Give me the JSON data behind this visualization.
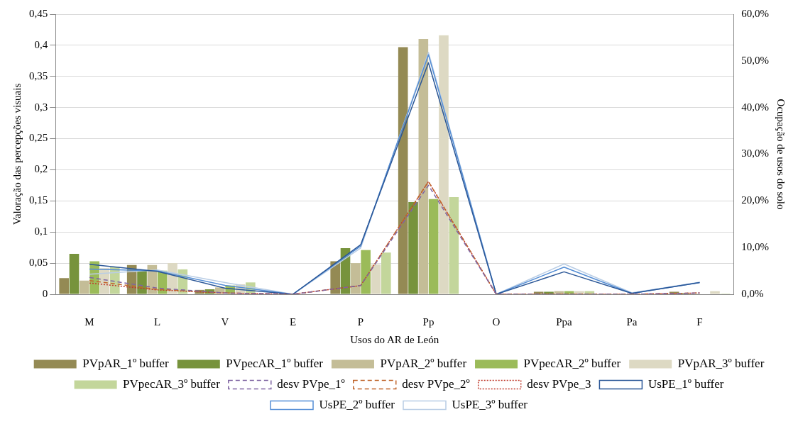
{
  "chart_data": {
    "type": "bar",
    "xlabel": "Usos do AR de León",
    "ylabel": "Valoração das percepções visuais",
    "y2label": "Ocupação de usos do solo",
    "categories": [
      "M",
      "L",
      "V",
      "E",
      "P",
      "Pp",
      "O",
      "Ppa",
      "Pa",
      "F"
    ],
    "series": [
      {
        "name": "PVpAR_1º buffer",
        "color": "#948a54",
        "values": [
          0.026,
          0.047,
          0.007,
          0,
          0.053,
          0.397,
          0,
          0.004,
          0,
          0.004
        ]
      },
      {
        "name": "PVpecAR_1º buffer",
        "color": "#77933c",
        "values": [
          0.065,
          0.038,
          0.008,
          0,
          0.074,
          0.148,
          0,
          0.004,
          0,
          0.002
        ]
      },
      {
        "name": "PVpAR_2º buffer",
        "color": "#c4bd97",
        "values": [
          0.022,
          0.047,
          0.011,
          0,
          0.05,
          0.41,
          0,
          0.005,
          0,
          0.001
        ]
      },
      {
        "name": "PVpecAR_2º buffer",
        "color": "#9bbb59",
        "values": [
          0.053,
          0.038,
          0.014,
          0,
          0.071,
          0.153,
          0,
          0.005,
          0,
          null
        ]
      },
      {
        "name": "PVpAR_3º buffer",
        "color": "#ddd9c3",
        "values": [
          0.042,
          0.05,
          0.016,
          0,
          0.048,
          0.416,
          0,
          0.005,
          0,
          0.005
        ]
      },
      {
        "name": "PVpecAR_3º buffer",
        "color": "#c3d69b",
        "values": [
          0.044,
          0.04,
          0.019,
          0,
          0.067,
          0.156,
          0,
          0.005,
          0,
          0.001
        ]
      },
      {
        "name": "desv PVpe_1º",
        "type": "line",
        "line_style": "dashed",
        "color": "#7f64a2",
        "values": [
          0.027,
          0.01,
          0.002,
          0,
          0.014,
          0.175,
          0,
          0,
          0,
          0.002
        ]
      },
      {
        "name": "desv PVpe_2º",
        "type": "line",
        "line_style": "dashed",
        "color": "#c0652b",
        "values": [
          0.022,
          0.008,
          0.002,
          0,
          0.014,
          0.181,
          0,
          0,
          0,
          0.002
        ]
      },
      {
        "name": "desv PVpe_3",
        "type": "line",
        "line_style": "dotted",
        "color": "#c0392b",
        "values": [
          0.018,
          0.007,
          0.002,
          0,
          0.014,
          0.181,
          0,
          0,
          0,
          0.002
        ]
      },
      {
        "name": "UsPE_1º buffer",
        "type": "line",
        "line_style": "solid",
        "axis": "y2",
        "color": "#2b5797",
        "values": [
          6.4,
          4.9,
          1.3,
          0,
          10.6,
          49.6,
          0,
          4.8,
          0.2,
          2.5
        ]
      },
      {
        "name": "UsPE_2º buffer",
        "type": "line",
        "line_style": "solid",
        "axis": "y2",
        "color": "#558ed5",
        "values": [
          5.4,
          5,
          1.9,
          0,
          10.3,
          51.3,
          0,
          5.8,
          0.2,
          2.5
        ]
      },
      {
        "name": "UsPE_3º buffer",
        "type": "line",
        "line_style": "solid",
        "axis": "y2",
        "color": "#b9cde5",
        "values": [
          4.3,
          5.2,
          2.5,
          0,
          9.9,
          51.8,
          0,
          6.5,
          0.3,
          2.6
        ]
      }
    ],
    "ylim": [
      0,
      0.45
    ],
    "yticks": [
      {
        "value": 0,
        "label": "0"
      },
      {
        "value": 0.05,
        "label": "0,05"
      },
      {
        "value": 0.1,
        "label": "0,1"
      },
      {
        "value": 0.15,
        "label": "0,15"
      },
      {
        "value": 0.2,
        "label": "0,2"
      },
      {
        "value": 0.25,
        "label": "0,25"
      },
      {
        "value": 0.3,
        "label": "0,3"
      },
      {
        "value": 0.35,
        "label": "0,35"
      },
      {
        "value": 0.4,
        "label": "0,4"
      },
      {
        "value": 0.45,
        "label": "0,45"
      }
    ],
    "y2lim": [
      0,
      60
    ],
    "y2ticks": [
      {
        "value": 0,
        "label": "0,0%"
      },
      {
        "value": 10,
        "label": "10,0%"
      },
      {
        "value": 20,
        "label": "20,0%"
      },
      {
        "value": 30,
        "label": "30,0%"
      },
      {
        "value": 40,
        "label": "40,0%"
      },
      {
        "value": 50,
        "label": "50,0%"
      },
      {
        "value": 60,
        "label": "60,0%"
      }
    ],
    "grid": "y",
    "legend": "bottom",
    "marker": "none"
  }
}
